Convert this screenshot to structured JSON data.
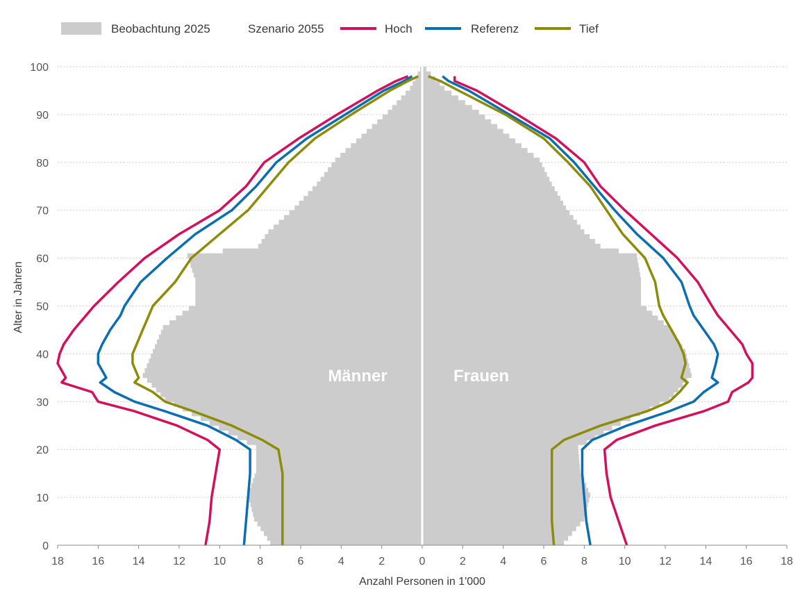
{
  "chart_data": {
    "type": "population-pyramid",
    "xlabel": "Anzahl Personen in 1'000",
    "ylabel": "Alter in Jahren",
    "xlim": [
      -18,
      18
    ],
    "ylim": [
      0,
      100
    ],
    "x_ticks": [
      -18,
      -16,
      -14,
      -12,
      -10,
      -8,
      -6,
      -4,
      -2,
      0,
      2,
      4,
      6,
      8,
      10,
      12,
      14,
      16,
      18
    ],
    "y_ticks": [
      0,
      10,
      20,
      30,
      40,
      50,
      60,
      70,
      80,
      90,
      100
    ],
    "grid": "horizontal",
    "legend_position": "top-left",
    "legend": {
      "observation_label": "Beobachtung 2025",
      "scenario_title": "Szenario 2055",
      "scenarios": [
        "Hoch",
        "Referenz",
        "Tief"
      ]
    },
    "sex_labels": {
      "male": "Männer",
      "female": "Frauen"
    },
    "colors": {
      "observation": "#cccccc",
      "Hoch": "#d3105c",
      "Referenz": "#0a6eb0",
      "Tief": "#8c8c0a",
      "center_line": "#ffffff"
    },
    "observation_2025": {
      "ages": [
        0,
        5,
        10,
        15,
        20,
        25,
        30,
        35,
        40,
        45,
        50,
        55,
        60,
        62,
        65,
        70,
        75,
        80,
        85,
        90,
        95,
        99
      ],
      "male": [
        7.5,
        8.3,
        8.6,
        8.2,
        8.2,
        10.5,
        12.7,
        13.8,
        13.3,
        12.8,
        11.2,
        11.2,
        11.6,
        8.1,
        7.6,
        6.3,
        5.2,
        4.3,
        3.0,
        1.7,
        0.6,
        0.1
      ],
      "female": [
        7.0,
        8.0,
        8.3,
        7.8,
        7.7,
        9.8,
        12.2,
        13.3,
        13.0,
        12.2,
        10.8,
        10.8,
        10.6,
        8.8,
        8.0,
        7.1,
        6.4,
        5.8,
        4.3,
        2.8,
        1.1,
        0.2
      ]
    },
    "series": [
      {
        "name": "Hoch",
        "ages": [
          0,
          5,
          10,
          15,
          20,
          22,
          25,
          28,
          30,
          32,
          34,
          35,
          38,
          40,
          42,
          45,
          48,
          50,
          55,
          60,
          65,
          70,
          75,
          80,
          85,
          90,
          95,
          97,
          98
        ],
        "male": [
          10.7,
          10.5,
          10.4,
          10.2,
          10.0,
          10.6,
          12.1,
          14.2,
          16.0,
          16.3,
          17.8,
          17.6,
          18.0,
          17.9,
          17.7,
          17.2,
          16.6,
          16.2,
          15.0,
          13.7,
          12.0,
          10.0,
          8.7,
          7.8,
          6.1,
          4.2,
          2.2,
          1.3,
          0.7
        ],
        "female": [
          10.1,
          9.7,
          9.3,
          9.1,
          9.0,
          9.6,
          11.5,
          13.9,
          15.1,
          15.3,
          16.1,
          16.3,
          16.3,
          16.0,
          15.8,
          15.2,
          14.6,
          14.3,
          13.6,
          12.6,
          11.3,
          10.0,
          8.8,
          8.0,
          6.6,
          4.7,
          2.7,
          1.6,
          1.6
        ]
      },
      {
        "name": "Referenz",
        "ages": [
          0,
          5,
          10,
          15,
          20,
          22,
          25,
          28,
          30,
          32,
          34,
          35,
          38,
          40,
          42,
          45,
          48,
          50,
          55,
          60,
          65,
          70,
          75,
          80,
          85,
          90,
          95,
          97,
          98
        ],
        "male": [
          8.8,
          8.7,
          8.6,
          8.5,
          8.5,
          9.2,
          10.6,
          12.7,
          14.2,
          15.2,
          15.9,
          15.6,
          16.0,
          16.0,
          15.8,
          15.4,
          14.9,
          14.7,
          13.9,
          12.6,
          11.2,
          9.4,
          8.2,
          7.2,
          5.7,
          3.8,
          1.9,
          0.9,
          0.5
        ],
        "female": [
          8.3,
          8.1,
          8.0,
          7.9,
          7.9,
          8.4,
          10.1,
          12.2,
          13.4,
          13.9,
          14.6,
          14.3,
          14.5,
          14.6,
          14.4,
          13.9,
          13.4,
          13.2,
          12.8,
          11.9,
          10.6,
          9.5,
          8.5,
          7.5,
          6.3,
          4.3,
          2.3,
          1.3,
          1.0
        ]
      },
      {
        "name": "Tief",
        "ages": [
          0,
          5,
          10,
          15,
          20,
          22,
          25,
          28,
          30,
          32,
          34,
          35,
          38,
          40,
          42,
          45,
          48,
          50,
          55,
          60,
          65,
          70,
          75,
          80,
          85,
          90,
          95,
          97,
          98
        ],
        "male": [
          6.9,
          6.9,
          6.9,
          6.9,
          7.1,
          7.9,
          9.4,
          11.3,
          12.7,
          13.3,
          14.2,
          14.0,
          14.3,
          14.3,
          14.1,
          13.8,
          13.5,
          13.3,
          12.2,
          11.4,
          10.0,
          8.6,
          7.6,
          6.6,
          5.3,
          3.5,
          1.6,
          0.7,
          0.2
        ],
        "female": [
          6.5,
          6.4,
          6.4,
          6.4,
          6.4,
          7.0,
          8.8,
          11.1,
          12.2,
          12.7,
          13.1,
          12.8,
          13.0,
          12.9,
          12.7,
          12.3,
          11.9,
          11.7,
          11.5,
          11.0,
          9.9,
          9.1,
          8.3,
          7.2,
          6.0,
          4.1,
          1.8,
          0.9,
          0.3
        ]
      }
    ]
  }
}
